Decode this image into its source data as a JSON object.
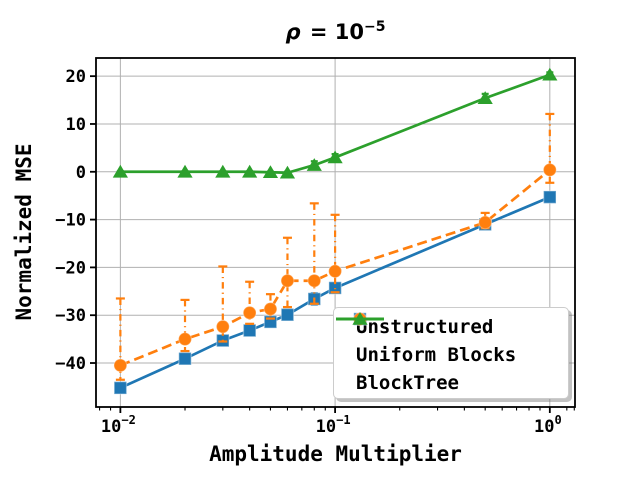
{
  "title": {
    "rho": "ρ",
    "body": " = 10",
    "exponent": "−5"
  },
  "axes": {
    "xlabel": "Amplitude Multiplier",
    "ylabel": "Normalized MSE",
    "x_scale": "log",
    "grid": true,
    "xlim": [
      0.0077,
      1.31
    ],
    "ylim": [
      -49.2,
      23.8
    ],
    "y_ticks": [
      "20",
      "10",
      "0",
      "−10",
      "−20",
      "−30",
      "−40"
    ],
    "y_tick_values": [
      20,
      10,
      0,
      -10,
      -20,
      -30,
      -40
    ],
    "x_ticks": [
      {
        "value": 0.01,
        "label_base": "10",
        "label_exp": "−2"
      },
      {
        "value": 0.1,
        "label_base": "10",
        "label_exp": "−1"
      },
      {
        "value": 1.0,
        "label_base": "10",
        "label_exp": "0"
      }
    ]
  },
  "chart_data": {
    "type": "line",
    "x": [
      0.01,
      0.02,
      0.03,
      0.04,
      0.05,
      0.06,
      0.08,
      0.1,
      0.5,
      1.0
    ],
    "series": [
      {
        "name": "Unstructured",
        "color": "#1f77b4",
        "marker": "square",
        "linestyle": "solid",
        "values": [
          -45.2,
          -39.1,
          -35.3,
          -33.2,
          -31.4,
          -29.9,
          -26.6,
          -24.3,
          -11.0,
          -5.3
        ],
        "err_lo": [
          0.6,
          0.6,
          0.6,
          0.6,
          0.6,
          0.6,
          1.2,
          1.0,
          0.5,
          0.7
        ],
        "err_hi": [
          0.6,
          0.6,
          0.6,
          0.6,
          0.6,
          0.6,
          1.2,
          1.0,
          0.5,
          0.7
        ]
      },
      {
        "name": "Uniform Blocks",
        "color": "#ff7f0e",
        "marker": "circle",
        "linestyle": "dashed",
        "errstyle": "dashdot",
        "values": [
          -40.5,
          -35.0,
          -32.4,
          -29.5,
          -28.7,
          -22.8,
          -22.8,
          -20.8,
          -10.6,
          0.4
        ],
        "err_lo": [
          3.0,
          2.5,
          3.1,
          2.3,
          2.0,
          5.5,
          4.8,
          4.4,
          1.2,
          2.7
        ],
        "err_hi": [
          14.0,
          8.2,
          12.6,
          6.5,
          3.1,
          9.0,
          16.2,
          11.8,
          2.0,
          11.7
        ]
      },
      {
        "name": "BlockTree",
        "color": "#2ca02c",
        "marker": "triangle",
        "linestyle": "solid",
        "values": [
          0.0,
          0.0,
          0.0,
          0.0,
          -0.1,
          -0.2,
          1.4,
          3.0,
          15.4,
          20.3
        ],
        "err_lo": [
          0.1,
          0.1,
          0.1,
          0.1,
          0.1,
          0.2,
          0.8,
          0.7,
          0.9,
          0.5
        ],
        "err_hi": [
          0.1,
          0.1,
          0.1,
          0.1,
          0.1,
          0.2,
          0.8,
          0.7,
          0.9,
          0.5
        ]
      }
    ],
    "legend": {
      "position": "lower right"
    }
  },
  "colors": {
    "background": "#ffffff",
    "grid": "#b0b0b0",
    "spine": "#000000",
    "text": "#000000"
  }
}
